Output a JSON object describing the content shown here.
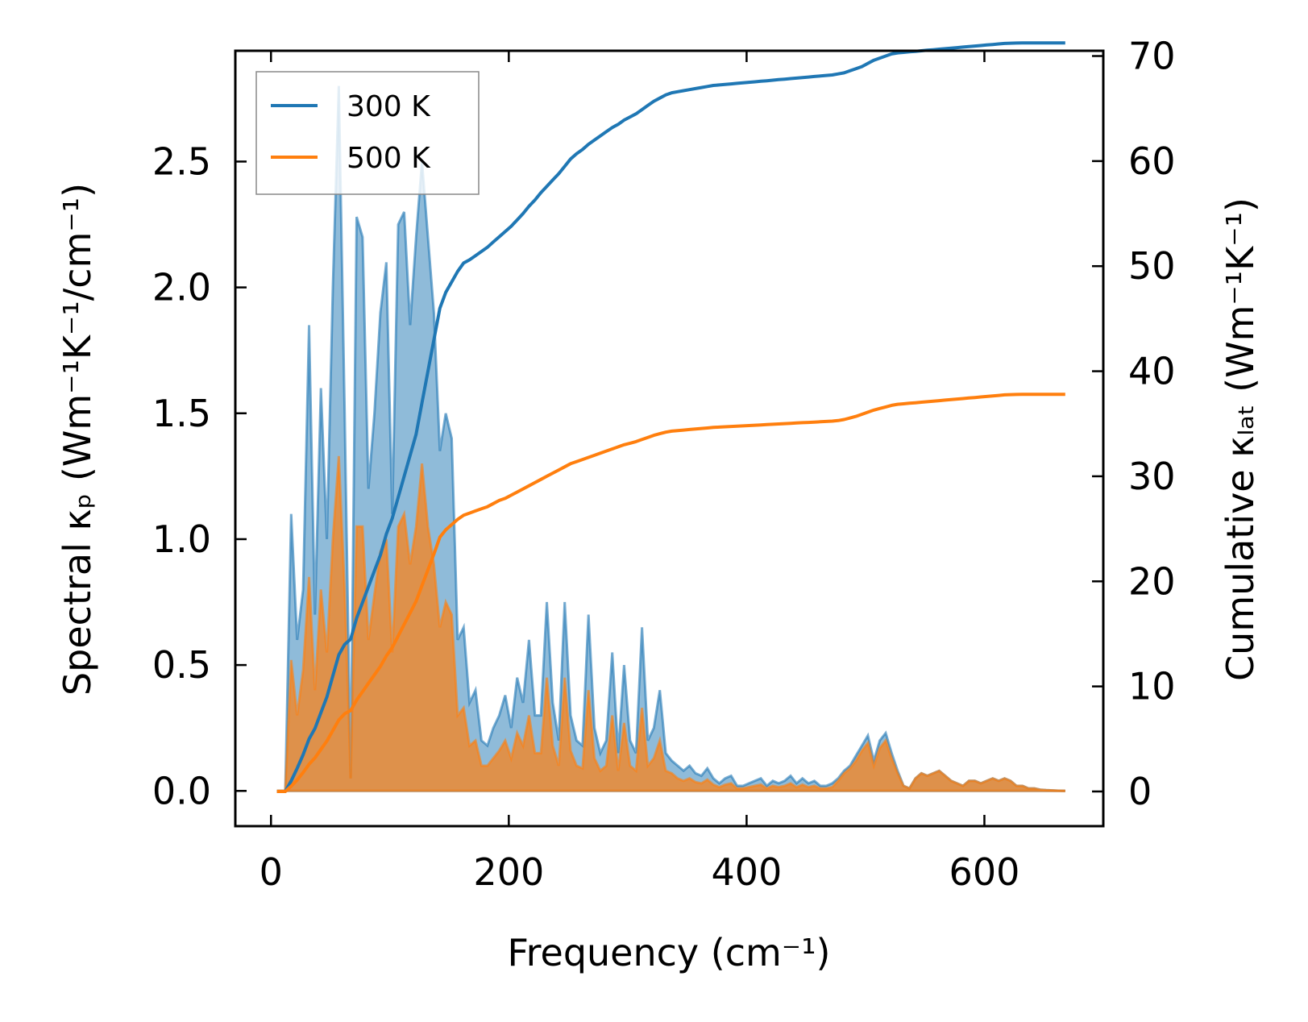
{
  "chart_data": {
    "type": "area",
    "xlabel": "Frequency (cm⁻¹)",
    "ylabel_left": "Spectral κₚ (Wm⁻¹K⁻¹/cm⁻¹)",
    "ylabel_right": "Cumulative κₗₐₜ (Wm⁻¹K⁻¹)",
    "xlim": [
      -30,
      700
    ],
    "ylim_left": [
      -0.14,
      2.94
    ],
    "ylim_right": [
      -3.3,
      70.5
    ],
    "xticks": [
      0,
      200,
      400,
      600
    ],
    "xtick_labels": [
      "0",
      "200",
      "400",
      "600"
    ],
    "yticks_left": [
      0.0,
      0.5,
      1.0,
      1.5,
      2.0,
      2.5
    ],
    "ytick_labels_left": [
      "0.0",
      "0.5",
      "1.0",
      "1.5",
      "2.0",
      "2.5"
    ],
    "yticks_right": [
      0,
      10,
      20,
      30,
      40,
      50,
      60,
      70
    ],
    "ytick_labels_right": [
      "0",
      "10",
      "20",
      "30",
      "40",
      "50",
      "60",
      "70"
    ],
    "legend": {
      "position": "top-left",
      "entries": [
        "300 K",
        "500 K"
      ]
    },
    "x": [
      5,
      12,
      17,
      22,
      27,
      32,
      37,
      42,
      47,
      52,
      57,
      62,
      67,
      72,
      77,
      82,
      87,
      92,
      97,
      102,
      107,
      112,
      117,
      122,
      127,
      132,
      137,
      142,
      147,
      152,
      157,
      162,
      167,
      172,
      177,
      182,
      187,
      192,
      197,
      202,
      207,
      212,
      217,
      222,
      227,
      232,
      237,
      242,
      247,
      252,
      257,
      262,
      267,
      272,
      277,
      282,
      287,
      292,
      297,
      302,
      307,
      312,
      317,
      322,
      327,
      332,
      337,
      342,
      347,
      352,
      357,
      362,
      367,
      372,
      377,
      382,
      387,
      392,
      397,
      402,
      407,
      412,
      417,
      422,
      427,
      432,
      437,
      442,
      447,
      452,
      457,
      462,
      467,
      472,
      477,
      482,
      487,
      492,
      497,
      502,
      507,
      512,
      517,
      522,
      527,
      532,
      537,
      542,
      547,
      552,
      557,
      562,
      567,
      572,
      577,
      582,
      587,
      592,
      597,
      602,
      607,
      612,
      617,
      622,
      627,
      632,
      637,
      642,
      647,
      652,
      657,
      662,
      668
    ],
    "series": [
      {
        "name": "300 K",
        "color": "#1f77b4",
        "spectral": [
          0,
          0,
          1.1,
          0.6,
          0.8,
          1.85,
          0.7,
          1.6,
          1.0,
          2.0,
          2.8,
          1.5,
          0.05,
          2.28,
          2.2,
          1.2,
          1.5,
          1.9,
          2.1,
          1.1,
          2.25,
          2.3,
          1.85,
          2.2,
          2.5,
          2.2,
          1.9,
          1.35,
          1.5,
          1.4,
          0.6,
          0.65,
          0.35,
          0.4,
          0.2,
          0.18,
          0.25,
          0.3,
          0.38,
          0.25,
          0.45,
          0.35,
          0.6,
          0.3,
          0.3,
          0.75,
          0.35,
          0.2,
          0.75,
          0.3,
          0.2,
          0.18,
          0.7,
          0.25,
          0.15,
          0.2,
          0.55,
          0.15,
          0.5,
          0.2,
          0.15,
          0.65,
          0.2,
          0.25,
          0.4,
          0.15,
          0.12,
          0.1,
          0.08,
          0.1,
          0.07,
          0.06,
          0.09,
          0.05,
          0.03,
          0.05,
          0.06,
          0.02,
          0.02,
          0.03,
          0.04,
          0.05,
          0.02,
          0.04,
          0.03,
          0.04,
          0.06,
          0.03,
          0.05,
          0.03,
          0.04,
          0.02,
          0.02,
          0.03,
          0.05,
          0.08,
          0.1,
          0.14,
          0.18,
          0.22,
          0.12,
          0.2,
          0.23,
          0.15,
          0.08,
          0.02,
          0.01,
          0.05,
          0.07,
          0.06,
          0.07,
          0.08,
          0.06,
          0.04,
          0.03,
          0.02,
          0.04,
          0.04,
          0.03,
          0.04,
          0.05,
          0.04,
          0.05,
          0.04,
          0.02,
          0.02,
          0.01,
          0.01,
          0.005,
          0.003,
          0.002,
          0.001,
          0
        ],
        "cumulative": [
          0,
          0,
          1,
          2.2,
          3.5,
          5,
          6,
          7.5,
          9,
          11,
          13,
          14,
          14.5,
          16.5,
          18,
          19.5,
          21,
          22.5,
          24.5,
          26,
          28,
          30,
          32,
          34,
          37,
          40,
          43,
          46,
          47.5,
          48.5,
          49.5,
          50.3,
          50.6,
          51,
          51.4,
          51.8,
          52.3,
          52.8,
          53.3,
          53.8,
          54.4,
          55,
          55.7,
          56.3,
          57,
          57.6,
          58.2,
          58.8,
          59.5,
          60.2,
          60.7,
          61.1,
          61.6,
          62,
          62.4,
          62.8,
          63.2,
          63.5,
          63.9,
          64.2,
          64.5,
          64.9,
          65.3,
          65.7,
          66,
          66.3,
          66.5,
          66.6,
          66.7,
          66.8,
          66.9,
          67,
          67.1,
          67.2,
          67.25,
          67.3,
          67.35,
          67.4,
          67.45,
          67.5,
          67.55,
          67.6,
          67.65,
          67.7,
          67.75,
          67.8,
          67.85,
          67.9,
          67.95,
          68,
          68.05,
          68.1,
          68.15,
          68.2,
          68.3,
          68.4,
          68.6,
          68.8,
          69,
          69.3,
          69.6,
          69.8,
          70,
          70.2,
          70.3,
          70.35,
          70.4,
          70.45,
          70.5,
          70.55,
          70.6,
          70.65,
          70.7,
          70.75,
          70.8,
          70.85,
          70.9,
          70.95,
          71,
          71.05,
          71.1,
          71.15,
          71.2,
          71.22,
          71.24,
          71.25,
          71.25,
          71.25,
          71.25,
          71.25,
          71.25,
          71.25,
          71.25
        ]
      },
      {
        "name": "500 K",
        "color": "#ff7f0e",
        "spectral": [
          0,
          0,
          0.52,
          0.3,
          0.48,
          0.85,
          0.4,
          0.8,
          0.55,
          1.0,
          1.33,
          0.8,
          0.05,
          1.05,
          1.05,
          0.6,
          0.78,
          0.95,
          1.0,
          0.55,
          1.05,
          1.1,
          0.9,
          1.05,
          1.3,
          1.05,
          0.9,
          0.65,
          0.75,
          0.7,
          0.3,
          0.33,
          0.18,
          0.2,
          0.1,
          0.1,
          0.13,
          0.16,
          0.2,
          0.13,
          0.23,
          0.18,
          0.3,
          0.15,
          0.15,
          0.45,
          0.18,
          0.1,
          0.45,
          0.16,
          0.1,
          0.09,
          0.4,
          0.13,
          0.08,
          0.1,
          0.3,
          0.08,
          0.27,
          0.1,
          0.08,
          0.33,
          0.1,
          0.13,
          0.2,
          0.08,
          0.07,
          0.05,
          0.04,
          0.05,
          0.035,
          0.03,
          0.045,
          0.025,
          0.015,
          0.025,
          0.03,
          0.01,
          0.01,
          0.015,
          0.02,
          0.025,
          0.01,
          0.02,
          0.015,
          0.02,
          0.03,
          0.015,
          0.025,
          0.015,
          0.02,
          0.01,
          0.01,
          0.015,
          0.04,
          0.07,
          0.09,
          0.12,
          0.16,
          0.19,
          0.1,
          0.17,
          0.2,
          0.13,
          0.07,
          0.02,
          0.01,
          0.05,
          0.07,
          0.06,
          0.07,
          0.08,
          0.06,
          0.04,
          0.03,
          0.02,
          0.04,
          0.04,
          0.03,
          0.04,
          0.05,
          0.04,
          0.05,
          0.04,
          0.02,
          0.02,
          0.01,
          0.01,
          0.005,
          0.003,
          0.002,
          0.001,
          0
        ],
        "cumulative": [
          0,
          0,
          0.5,
          1.1,
          1.8,
          2.6,
          3.2,
          4,
          4.8,
          5.8,
          6.8,
          7.4,
          7.7,
          8.7,
          9.5,
          10.3,
          11.1,
          11.9,
          12.9,
          13.7,
          14.8,
          15.9,
          17,
          18.1,
          19.6,
          21.1,
          22.6,
          24.2,
          24.9,
          25.4,
          25.9,
          26.3,
          26.5,
          26.7,
          26.9,
          27.1,
          27.4,
          27.7,
          27.9,
          28.2,
          28.5,
          28.8,
          29.1,
          29.4,
          29.7,
          30,
          30.3,
          30.6,
          30.9,
          31.2,
          31.4,
          31.6,
          31.8,
          32,
          32.2,
          32.4,
          32.6,
          32.8,
          33,
          33.15,
          33.3,
          33.5,
          33.7,
          33.9,
          34.05,
          34.2,
          34.3,
          34.35,
          34.4,
          34.45,
          34.5,
          34.55,
          34.6,
          34.65,
          34.68,
          34.71,
          34.74,
          34.77,
          34.8,
          34.83,
          34.86,
          34.89,
          34.92,
          34.95,
          34.98,
          35.01,
          35.04,
          35.07,
          35.1,
          35.13,
          35.16,
          35.19,
          35.22,
          35.25,
          35.3,
          35.4,
          35.55,
          35.7,
          35.9,
          36.1,
          36.3,
          36.45,
          36.6,
          36.75,
          36.85,
          36.9,
          36.95,
          37,
          37.05,
          37.1,
          37.15,
          37.2,
          37.25,
          37.3,
          37.35,
          37.4,
          37.45,
          37.5,
          37.55,
          37.6,
          37.65,
          37.7,
          37.75,
          37.77,
          37.79,
          37.8,
          37.8,
          37.8,
          37.8,
          37.8,
          37.8,
          37.8,
          37.8
        ]
      }
    ]
  }
}
